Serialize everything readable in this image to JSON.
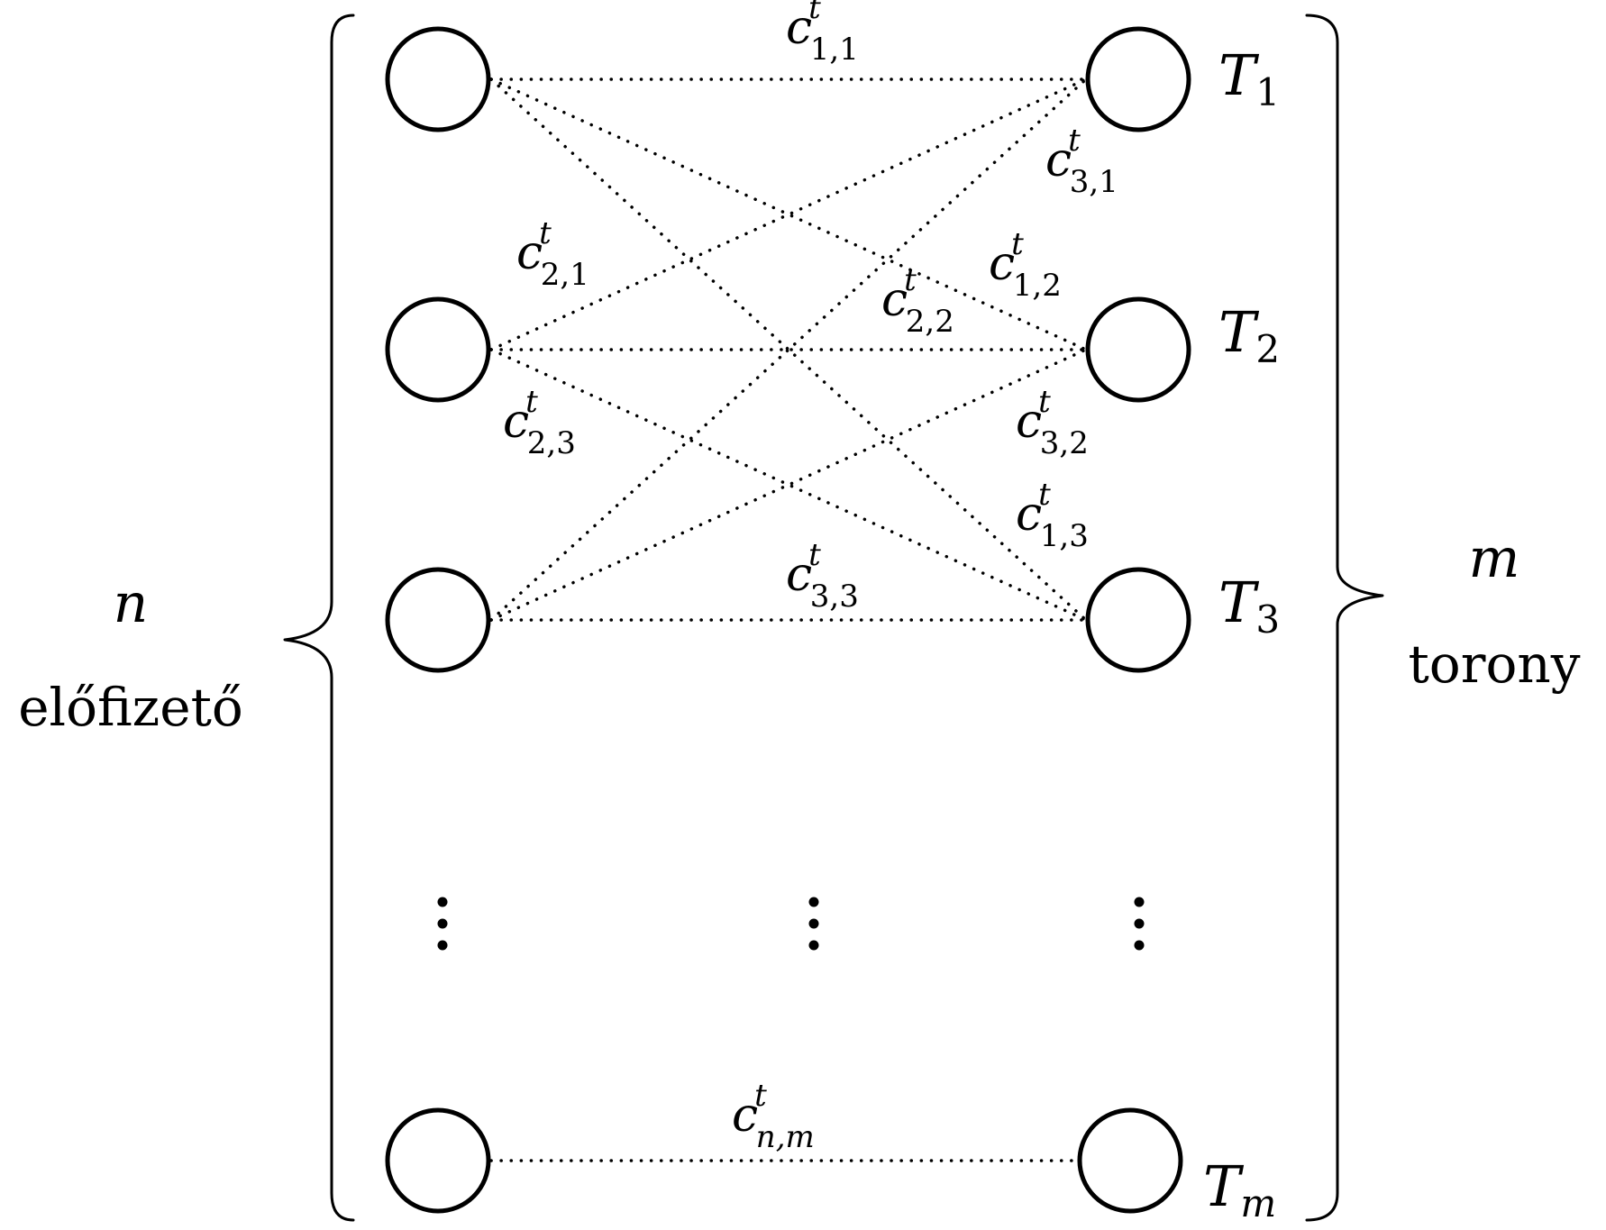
{
  "left_group": {
    "count_symbol": "n",
    "label": "előfizető"
  },
  "right_group": {
    "count_symbol": "m",
    "label": "torony"
  },
  "towers": [
    {
      "symbol": "T",
      "index": "1"
    },
    {
      "symbol": "T",
      "index": "2"
    },
    {
      "symbol": "T",
      "index": "3"
    },
    {
      "symbol": "T",
      "index": "m"
    }
  ],
  "edge_labels": [
    {
      "base": "c",
      "sup": "t",
      "sub": "1,1"
    },
    {
      "base": "c",
      "sup": "t",
      "sub": "3,1"
    },
    {
      "base": "c",
      "sup": "t",
      "sub": "2,1"
    },
    {
      "base": "c",
      "sup": "t",
      "sub": "1,2"
    },
    {
      "base": "c",
      "sup": "t",
      "sub": "2,2"
    },
    {
      "base": "c",
      "sup": "t",
      "sub": "2,3"
    },
    {
      "base": "c",
      "sup": "t",
      "sub": "3,2"
    },
    {
      "base": "c",
      "sup": "t",
      "sub": "1,3"
    },
    {
      "base": "c",
      "sup": "t",
      "sub": "3,3"
    },
    {
      "base": "c",
      "sup": "t",
      "sub": "n,m"
    }
  ]
}
